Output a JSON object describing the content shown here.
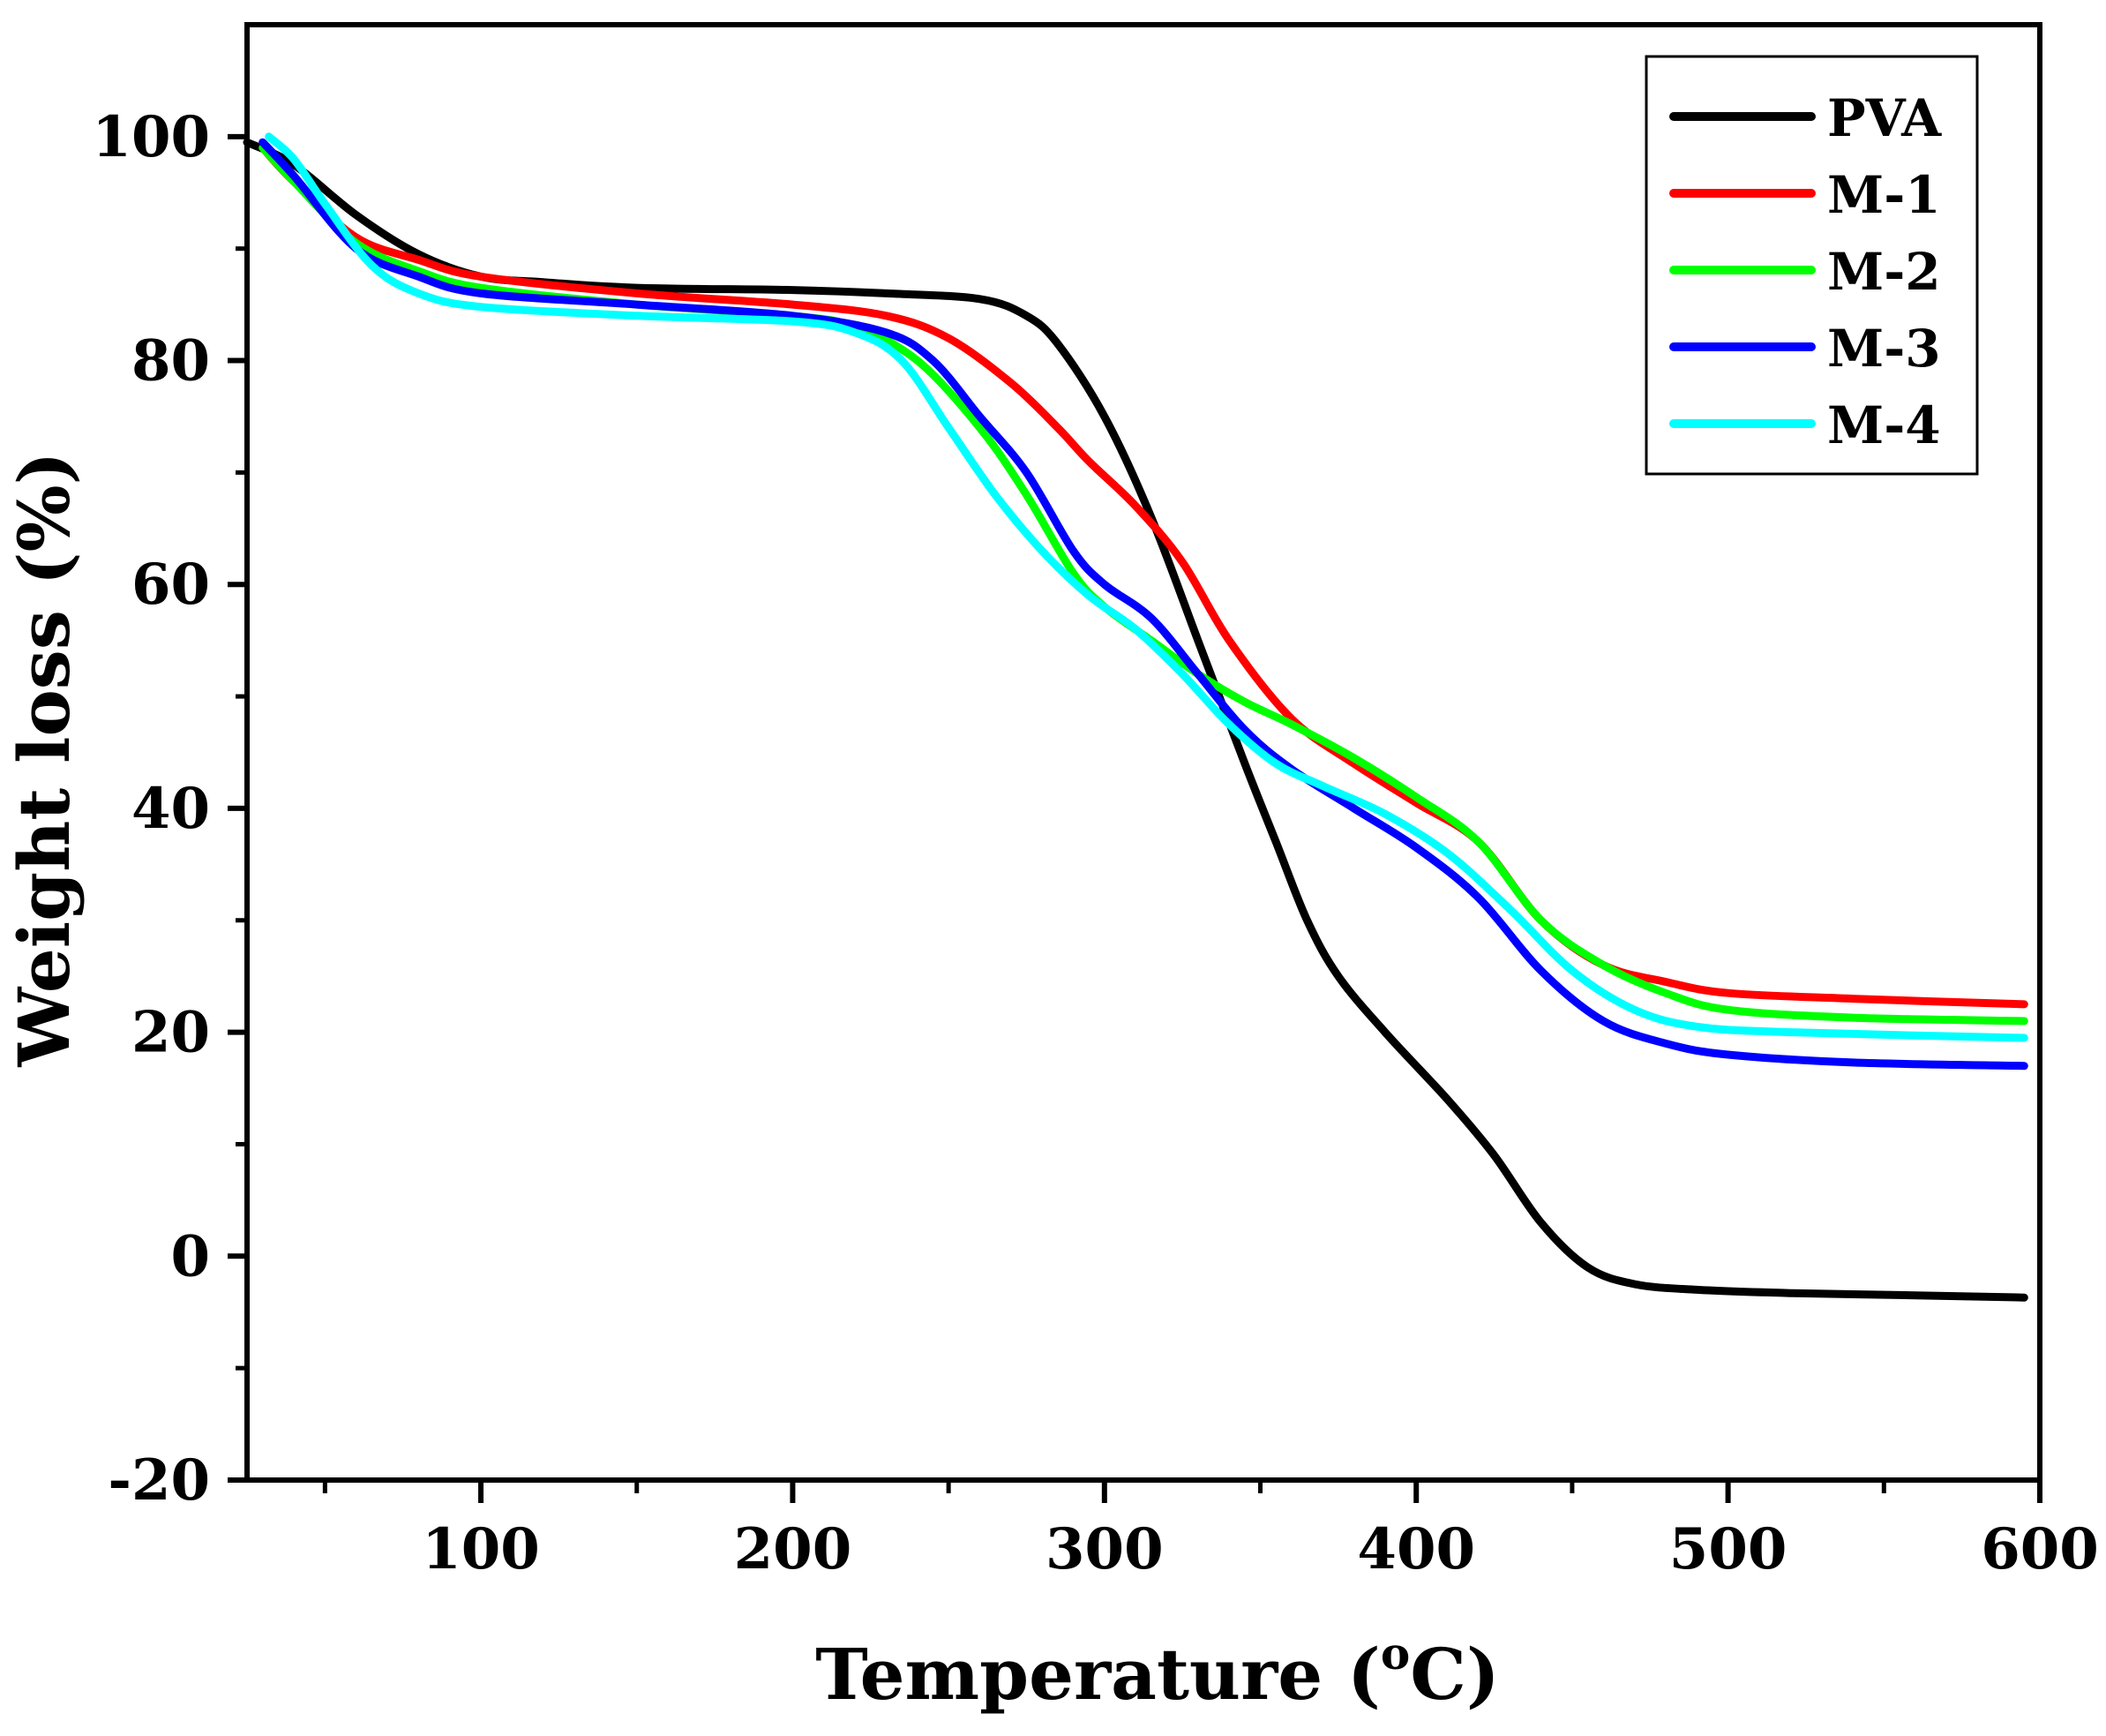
{
  "chart_data": {
    "type": "line",
    "title": "",
    "xlabel_main": "Temperature (",
    "xlabel_sup": "o",
    "xlabel_unit": "C)",
    "ylabel": "Weight loss (%)",
    "xlim": [
      25,
      600
    ],
    "ylim": [
      -20,
      110
    ],
    "xticks": [
      100,
      200,
      300,
      400,
      500,
      600
    ],
    "xticks_minor": [
      50,
      150,
      250,
      350,
      450,
      550
    ],
    "yticks": [
      -20,
      0,
      20,
      40,
      60,
      80,
      100
    ],
    "yticks_minor": [
      -10,
      10,
      30,
      50,
      70,
      90
    ],
    "grid": false,
    "legend_position": "top-right",
    "series": [
      {
        "name": "PVA",
        "color": "#000000",
        "x": [
          25,
          40,
          60,
          80,
          100,
          120,
          150,
          200,
          230,
          260,
          275,
          285,
          300,
          315,
          330,
          345,
          355,
          365,
          375,
          390,
          410,
          425,
          440,
          455,
          470,
          490,
          520,
          560,
          595
        ],
        "y": [
          99.5,
          97.5,
          93,
          89.5,
          87.5,
          87,
          86.5,
          86.3,
          86,
          85.5,
          84,
          81.5,
          75,
          66,
          55,
          44,
          37,
          30,
          25,
          20,
          14,
          9,
          3,
          -1,
          -2.5,
          -3,
          -3.3,
          -3.5,
          -3.7
        ]
      },
      {
        "name": "M-1",
        "color": "#ff0000",
        "x": [
          30,
          40,
          60,
          80,
          100,
          150,
          200,
          230,
          250,
          270,
          285,
          295,
          310,
          325,
          340,
          360,
          380,
          400,
          420,
          440,
          460,
          480,
          500,
          540,
          595
        ],
        "y": [
          99,
          96,
          91,
          89,
          87.5,
          86,
          85,
          84,
          82,
          78,
          74,
          71,
          67,
          62,
          55,
          48,
          44,
          40.5,
          37,
          30,
          26,
          24.5,
          23.5,
          23,
          22.5
        ]
      },
      {
        "name": "M-2",
        "color": "#00ff00",
        "x": [
          30,
          40,
          60,
          80,
          100,
          150,
          200,
          220,
          240,
          260,
          275,
          290,
          300,
          315,
          330,
          345,
          360,
          380,
          400,
          420,
          440,
          460,
          480,
          500,
          540,
          595
        ],
        "y": [
          99,
          96,
          90.5,
          88,
          86.5,
          85,
          84,
          83,
          80,
          74,
          68,
          61,
          58,
          55,
          52,
          49.5,
          47.5,
          44.5,
          41,
          37,
          30,
          26,
          23.5,
          22,
          21.3,
          21
        ]
      },
      {
        "name": "M-3",
        "color": "#0000ff",
        "x": [
          30,
          40,
          60,
          80,
          100,
          150,
          200,
          230,
          245,
          260,
          275,
          290,
          300,
          315,
          330,
          345,
          360,
          380,
          400,
          420,
          440,
          460,
          480,
          500,
          540,
          595
        ],
        "y": [
          99.5,
          96.5,
          90,
          87.5,
          86,
          85,
          84,
          82.5,
          80,
          75,
          70,
          63,
          60,
          57,
          52,
          47,
          43.5,
          40,
          36.5,
          32,
          25.5,
          21,
          19,
          18,
          17.3,
          17
        ]
      },
      {
        "name": "M-4",
        "color": "#00ffff",
        "x": [
          32,
          40,
          50,
          65,
          80,
          100,
          150,
          200,
          220,
          235,
          250,
          265,
          280,
          295,
          310,
          325,
          340,
          355,
          370,
          390,
          410,
          430,
          450,
          470,
          490,
          520,
          595
        ],
        "y": [
          100,
          98,
          94,
          88.5,
          86,
          84.8,
          84,
          83.5,
          82.5,
          80,
          74,
          68,
          63,
          59,
          56,
          52,
          47.5,
          44,
          42,
          39.5,
          36,
          31,
          25.5,
          22,
          20.5,
          20,
          19.5
        ]
      }
    ]
  }
}
